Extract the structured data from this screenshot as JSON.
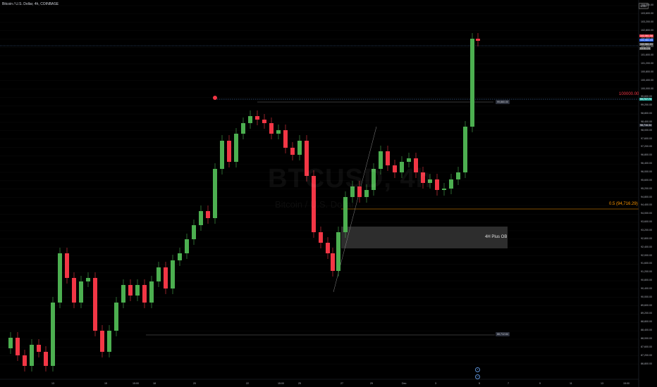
{
  "header": {
    "title": "Bitcoin / U.S. Dollar, 4h, COINBASE",
    "currency": "USD"
  },
  "watermark": {
    "symbol": "BTCUSD, 4h",
    "name": "Bitcoin / U.S. Dollar"
  },
  "annotations": {
    "ob_label": "4H Plus OB",
    "level_100k": "100000.00",
    "fib_label": "0.5 (94,716.29)",
    "high_box": "99,860.00",
    "mid_box": "98,716.34",
    "low_box": "88,712.64",
    "target_tag": "99,707.75",
    "current_price": "102,100.00",
    "sell_price": "102,561.56",
    "buy_price": "102,561.05",
    "spread": "102,561.01",
    "timer": "03:51:24"
  },
  "price_axis": {
    "ticks": [
      "104,000.00",
      "103,600.00",
      "103,200.00",
      "102,800.00",
      "102,400.00",
      "102,000.00",
      "101,600.00",
      "101,200.00",
      "100,800.00",
      "100,400.00",
      "100,000.00",
      "99,600.00",
      "99,200.00",
      "98,800.00",
      "98,400.00",
      "98,000.00",
      "97,600.00",
      "97,200.00",
      "96,800.00",
      "96,400.00",
      "96,000.00",
      "95,600.00",
      "95,200.00",
      "94,800.00",
      "94,400.00",
      "94,000.00",
      "93,600.00",
      "93,200.00",
      "92,800.00",
      "92,400.00",
      "92,000.00",
      "91,600.00",
      "91,200.00",
      "90,800.00",
      "90,400.00",
      "90,000.00",
      "89,600.00",
      "89,200.00",
      "88,800.00",
      "88,400.00",
      "88,000.00",
      "87,600.00",
      "87,200.00",
      "86,800.00"
    ]
  },
  "time_axis": {
    "ticks": [
      "13",
      "15",
      "15:00",
      "18",
      "20",
      "22",
      "15:00",
      "25",
      "27",
      "29",
      "Dec",
      "3",
      "5",
      "7",
      "9",
      "11",
      "13",
      "15:00"
    ]
  },
  "colors": {
    "up": "#4caf50",
    "down": "#f23645",
    "grid": "#1a1a1a",
    "ob_zone": "#2d2d2d",
    "dotted_level": "#5b8fd4",
    "fib_line": "#ff9800"
  }
}
